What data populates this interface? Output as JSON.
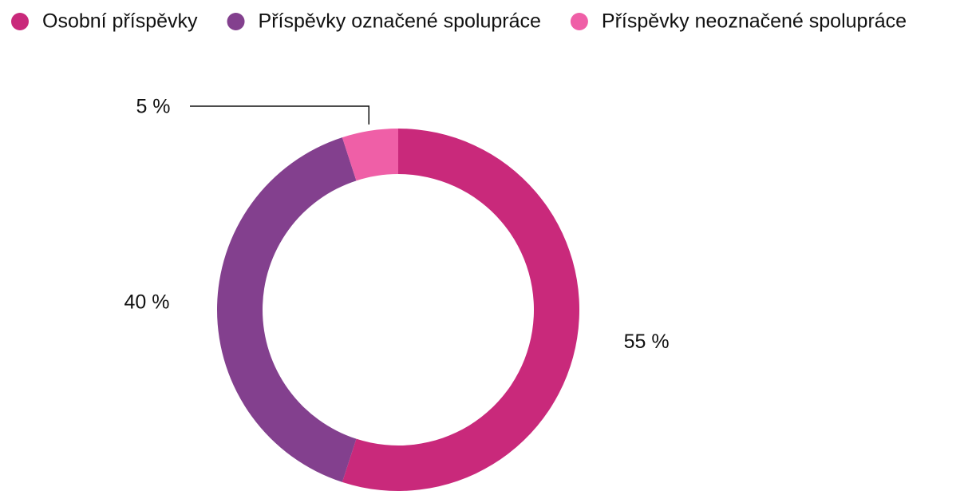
{
  "chart_data": {
    "type": "donut",
    "categories": [
      "Osobní příspěvky",
      "Příspěvky označené spolupráce",
      "Příspěvky neoznačené spolupráce"
    ],
    "values": [
      55,
      40,
      5
    ],
    "value_labels": [
      "55 %",
      "40 %",
      "5 %"
    ],
    "colors": [
      "#c9297b",
      "#83408e",
      "#ef5fa7"
    ],
    "legend": "top"
  }
}
